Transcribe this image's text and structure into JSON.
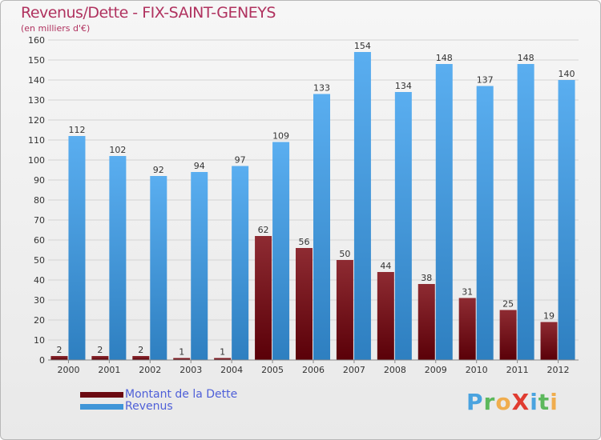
{
  "chart_data": {
    "type": "bar",
    "title": "Revenus/Dette - FIX-SAINT-GENEYS",
    "subtitle": "(en milliers d'€)",
    "categories": [
      "2000",
      "2001",
      "2002",
      "2003",
      "2004",
      "2005",
      "2006",
      "2007",
      "2008",
      "2009",
      "2010",
      "2011",
      "2012"
    ],
    "series": [
      {
        "name": "Montant de la Dette",
        "color": "#6b0a12",
        "values": [
          2,
          2,
          2,
          1,
          1,
          62,
          56,
          50,
          44,
          38,
          31,
          25,
          19
        ]
      },
      {
        "name": "Revenus",
        "color": "#3f95d8",
        "values": [
          112,
          102,
          92,
          94,
          97,
          109,
          133,
          154,
          134,
          148,
          137,
          148,
          140
        ]
      }
    ],
    "ylim": [
      0,
      160
    ],
    "ytick_step": 10,
    "grid": true,
    "legend_position": "bottom-left"
  },
  "brand": {
    "logo_text": "ProXiti"
  }
}
